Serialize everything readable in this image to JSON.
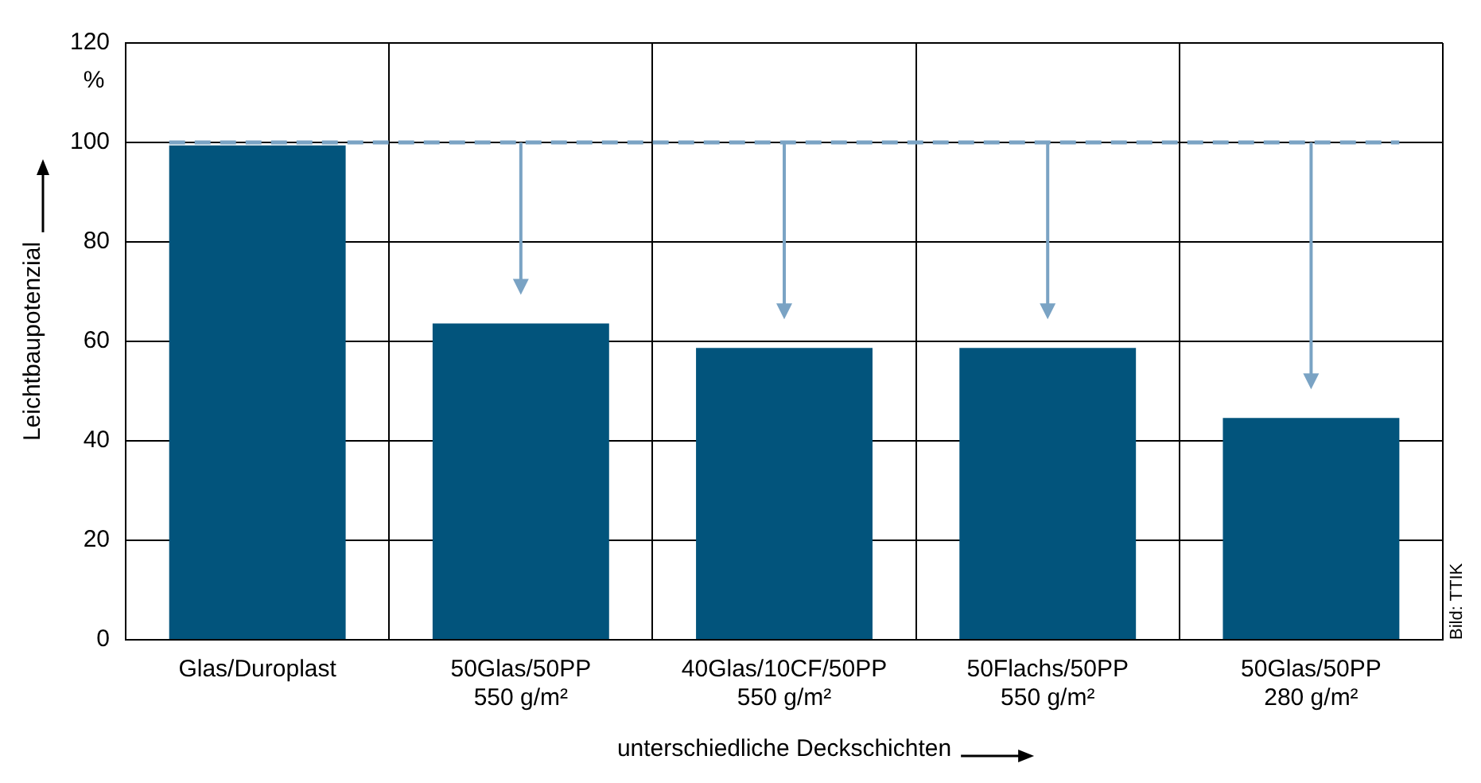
{
  "chart_data": {
    "type": "bar",
    "xlabel": "unterschiedliche Deckschichten",
    "ylabel": "Leichtbaupotenzial",
    "categories": [
      "Glas/Duroplast",
      "50Glas/50PP\n550 g/m²",
      "40Glas/10CF/50PP\n550 g/m²",
      "50Flachs/50PP\n550 g/m²",
      "50Glas/50PP\n280 g/m²"
    ],
    "values": [
      99.4,
      63.6,
      58.7,
      58.7,
      44.6
    ],
    "color": "#02547c",
    "ylim": [
      0,
      120
    ],
    "yticks": [
      0,
      20,
      40,
      60,
      80,
      100,
      120
    ],
    "grid": true,
    "ref_lines": [
      {
        "axis": "y",
        "value": 100,
        "color": "#7aa3c4",
        "line_style": "dashed"
      }
    ],
    "annotations": [
      "%",
      "Bild: TTIK"
    ]
  }
}
